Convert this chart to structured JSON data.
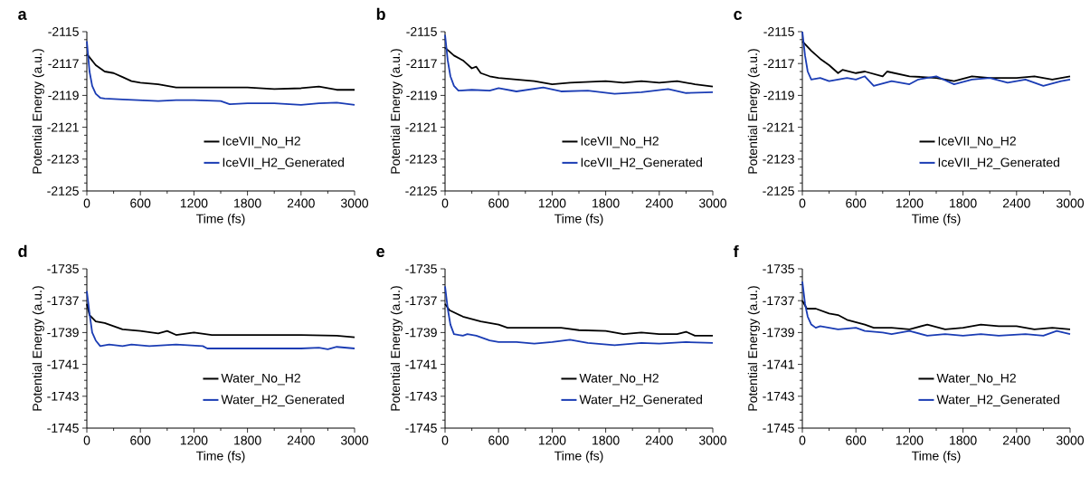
{
  "chart_data": [
    {
      "type": "line",
      "title": "a",
      "xlabel": "Time (fs)",
      "ylabel": "Potential Energy (a.u.)",
      "xlim": [
        0,
        3000
      ],
      "ylim": [
        -2125,
        -2115
      ],
      "xticks": [
        0,
        600,
        1200,
        1800,
        2400,
        3000
      ],
      "yticks": [
        -2125,
        -2123,
        -2121,
        -2119,
        -2117,
        -2115
      ],
      "legend": "bottom right",
      "series": [
        {
          "name": "IceVII_No_H2",
          "color": "#000000",
          "x": [
            0,
            100,
            200,
            300,
            400,
            500,
            600,
            800,
            1000,
            1200,
            1500,
            1800,
            2100,
            2400,
            2600,
            2800,
            3000
          ],
          "values": [
            -2116.4,
            -2117.1,
            -2117.5,
            -2117.6,
            -2117.85,
            -2118.1,
            -2118.2,
            -2118.3,
            -2118.5,
            -2118.5,
            -2118.5,
            -2118.5,
            -2118.6,
            -2118.55,
            -2118.45,
            -2118.65,
            -2118.65
          ]
        },
        {
          "name": "IceVII_H2_Generated",
          "color": "#1a3cb4",
          "x": [
            0,
            30,
            60,
            100,
            150,
            200,
            400,
            600,
            800,
            1000,
            1200,
            1500,
            1600,
            1800,
            2100,
            2400,
            2600,
            2800,
            3000
          ],
          "values": [
            -2115.6,
            -2117.5,
            -2118.4,
            -2118.9,
            -2119.15,
            -2119.2,
            -2119.25,
            -2119.3,
            -2119.35,
            -2119.3,
            -2119.3,
            -2119.35,
            -2119.55,
            -2119.5,
            -2119.5,
            -2119.6,
            -2119.5,
            -2119.45,
            -2119.6
          ]
        }
      ]
    },
    {
      "type": "line",
      "title": "b",
      "xlabel": "Time (fs)",
      "ylabel": "Potential Energy (a.u.)",
      "xlim": [
        0,
        3000
      ],
      "ylim": [
        -2125,
        -2115
      ],
      "xticks": [
        0,
        600,
        1200,
        1800,
        2400,
        3000
      ],
      "yticks": [
        -2125,
        -2123,
        -2121,
        -2119,
        -2117,
        -2115
      ],
      "legend": "bottom right",
      "series": [
        {
          "name": "IceVII_No_H2",
          "color": "#000000",
          "x": [
            0,
            100,
            200,
            300,
            350,
            400,
            500,
            600,
            800,
            1000,
            1200,
            1400,
            1800,
            2000,
            2200,
            2400,
            2600,
            2800,
            3000
          ],
          "values": [
            -2116.0,
            -2116.5,
            -2116.8,
            -2117.3,
            -2117.2,
            -2117.6,
            -2117.8,
            -2117.9,
            -2118.0,
            -2118.1,
            -2118.3,
            -2118.2,
            -2118.1,
            -2118.2,
            -2118.1,
            -2118.2,
            -2118.1,
            -2118.3,
            -2118.45
          ]
        },
        {
          "name": "IceVII_H2_Generated",
          "color": "#1a3cb4",
          "x": [
            0,
            30,
            60,
            100,
            150,
            300,
            500,
            600,
            800,
            1100,
            1300,
            1600,
            1900,
            2200,
            2500,
            2700,
            3000
          ],
          "values": [
            -2115.2,
            -2116.8,
            -2117.8,
            -2118.4,
            -2118.7,
            -2118.65,
            -2118.7,
            -2118.55,
            -2118.75,
            -2118.5,
            -2118.75,
            -2118.7,
            -2118.9,
            -2118.8,
            -2118.6,
            -2118.85,
            -2118.8
          ]
        }
      ]
    },
    {
      "type": "line",
      "title": "c",
      "xlabel": "Time (fs)",
      "ylabel": "Potential Energy (a.u.)",
      "xlim": [
        0,
        3000
      ],
      "ylim": [
        -2125,
        -2115
      ],
      "xticks": [
        0,
        600,
        1200,
        1800,
        2400,
        3000
      ],
      "yticks": [
        -2125,
        -2123,
        -2121,
        -2119,
        -2117,
        -2115
      ],
      "legend": "bottom right",
      "series": [
        {
          "name": "IceVII_No_H2",
          "color": "#000000",
          "x": [
            0,
            100,
            200,
            300,
            400,
            450,
            600,
            700,
            900,
            950,
            1200,
            1500,
            1700,
            1900,
            2100,
            2400,
            2600,
            2800,
            3000
          ],
          "values": [
            -2115.6,
            -2116.2,
            -2116.7,
            -2117.1,
            -2117.6,
            -2117.4,
            -2117.6,
            -2117.5,
            -2117.8,
            -2117.5,
            -2117.8,
            -2117.9,
            -2118.1,
            -2117.8,
            -2117.9,
            -2117.9,
            -2117.8,
            -2118.0,
            -2117.8
          ]
        },
        {
          "name": "IceVII_H2_Generated",
          "color": "#1a3cb4",
          "x": [
            0,
            30,
            60,
            100,
            200,
            300,
            500,
            600,
            700,
            800,
            1000,
            1100,
            1200,
            1300,
            1500,
            1700,
            1900,
            2100,
            2300,
            2500,
            2700,
            2900,
            3000
          ],
          "values": [
            -2115.0,
            -2116.5,
            -2117.5,
            -2118.0,
            -2117.9,
            -2118.1,
            -2117.9,
            -2118.0,
            -2117.8,
            -2118.4,
            -2118.1,
            -2118.2,
            -2118.3,
            -2118.0,
            -2117.8,
            -2118.3,
            -2118.0,
            -2117.9,
            -2118.2,
            -2118.0,
            -2118.4,
            -2118.1,
            -2118.0
          ]
        }
      ]
    },
    {
      "type": "line",
      "title": "d",
      "xlabel": "Time (fs)",
      "ylabel": "Potential Energy (a.u.)",
      "xlim": [
        0,
        3000
      ],
      "ylim": [
        -1745,
        -1735
      ],
      "xticks": [
        0,
        600,
        1200,
        1800,
        2400,
        3000
      ],
      "yticks": [
        -1745,
        -1743,
        -1741,
        -1739,
        -1737,
        -1735
      ],
      "legend": "bottom right",
      "series": [
        {
          "name": "Water_No_H2",
          "color": "#000000",
          "x": [
            0,
            30,
            100,
            200,
            300,
            400,
            600,
            800,
            900,
            1000,
            1200,
            1400,
            1800,
            2100,
            2400,
            2800,
            3000
          ],
          "values": [
            -1737.2,
            -1737.9,
            -1738.3,
            -1738.4,
            -1738.6,
            -1738.8,
            -1738.9,
            -1739.05,
            -1738.9,
            -1739.15,
            -1739.0,
            -1739.15,
            -1739.15,
            -1739.15,
            -1739.15,
            -1739.2,
            -1739.3
          ]
        },
        {
          "name": "Water_H2_Generated",
          "color": "#1a3cb4",
          "x": [
            0,
            30,
            60,
            100,
            150,
            250,
            400,
            500,
            700,
            1000,
            1300,
            1350,
            1800,
            2400,
            2600,
            2700,
            2800,
            3000
          ],
          "values": [
            -1736.4,
            -1737.8,
            -1739.0,
            -1739.5,
            -1739.85,
            -1739.75,
            -1739.85,
            -1739.75,
            -1739.85,
            -1739.75,
            -1739.85,
            -1740.0,
            -1740.0,
            -1740.0,
            -1739.95,
            -1740.05,
            -1739.9,
            -1740.0
          ]
        }
      ]
    },
    {
      "type": "line",
      "title": "e",
      "xlabel": "Time (fs)",
      "ylabel": "Potential Energy (a.u.)",
      "xlim": [
        0,
        3000
      ],
      "ylim": [
        -1745,
        -1735
      ],
      "xticks": [
        0,
        600,
        1200,
        1800,
        2400,
        3000
      ],
      "yticks": [
        -1745,
        -1743,
        -1741,
        -1739,
        -1737,
        -1735
      ],
      "legend": "bottom right",
      "series": [
        {
          "name": "Water_No_H2",
          "color": "#000000",
          "x": [
            0,
            50,
            200,
            400,
            600,
            700,
            1000,
            1300,
            1500,
            1800,
            2000,
            2200,
            2400,
            2600,
            2700,
            2800,
            3000
          ],
          "values": [
            -1737.2,
            -1737.6,
            -1738.0,
            -1738.3,
            -1738.5,
            -1738.7,
            -1738.7,
            -1738.7,
            -1738.85,
            -1738.9,
            -1739.1,
            -1739.0,
            -1739.1,
            -1739.1,
            -1738.95,
            -1739.2,
            -1739.2
          ]
        },
        {
          "name": "Water_H2_Generated",
          "color": "#1a3cb4",
          "x": [
            0,
            30,
            60,
            100,
            200,
            250,
            350,
            500,
            600,
            800,
            1000,
            1200,
            1400,
            1600,
            1900,
            2200,
            2400,
            2700,
            3000
          ],
          "values": [
            -1736.1,
            -1737.5,
            -1738.5,
            -1739.1,
            -1739.2,
            -1739.1,
            -1739.2,
            -1739.5,
            -1739.6,
            -1739.6,
            -1739.7,
            -1739.6,
            -1739.45,
            -1739.65,
            -1739.8,
            -1739.65,
            -1739.7,
            -1739.6,
            -1739.65
          ]
        }
      ]
    },
    {
      "type": "line",
      "title": "f",
      "xlabel": "Time (fs)",
      "ylabel": "Potential Energy (a.u.)",
      "xlim": [
        0,
        3000
      ],
      "ylim": [
        -1745,
        -1735
      ],
      "xticks": [
        0,
        600,
        1200,
        1800,
        2400,
        3000
      ],
      "yticks": [
        -1745,
        -1743,
        -1741,
        -1739,
        -1737,
        -1735
      ],
      "legend": "bottom right",
      "series": [
        {
          "name": "Water_No_H2",
          "color": "#000000",
          "x": [
            0,
            50,
            150,
            300,
            400,
            500,
            700,
            800,
            1000,
            1200,
            1400,
            1600,
            1800,
            2000,
            2200,
            2400,
            2600,
            2800,
            3000
          ],
          "values": [
            -1737.0,
            -1737.5,
            -1737.5,
            -1737.8,
            -1737.9,
            -1738.2,
            -1738.5,
            -1738.7,
            -1738.7,
            -1738.8,
            -1738.5,
            -1738.8,
            -1738.7,
            -1738.5,
            -1738.6,
            -1738.6,
            -1738.8,
            -1738.7,
            -1738.8
          ]
        },
        {
          "name": "Water_H2_Generated",
          "color": "#1a3cb4",
          "x": [
            0,
            30,
            60,
            100,
            150,
            200,
            400,
            600,
            700,
            900,
            1000,
            1200,
            1400,
            1600,
            1800,
            2000,
            2200,
            2500,
            2700,
            2850,
            3000
          ],
          "values": [
            -1735.8,
            -1737.2,
            -1738.0,
            -1738.5,
            -1738.7,
            -1738.6,
            -1738.8,
            -1738.7,
            -1738.9,
            -1739.0,
            -1739.1,
            -1738.9,
            -1739.2,
            -1739.1,
            -1739.2,
            -1739.1,
            -1739.2,
            -1739.1,
            -1739.2,
            -1738.9,
            -1739.1
          ]
        }
      ]
    }
  ]
}
